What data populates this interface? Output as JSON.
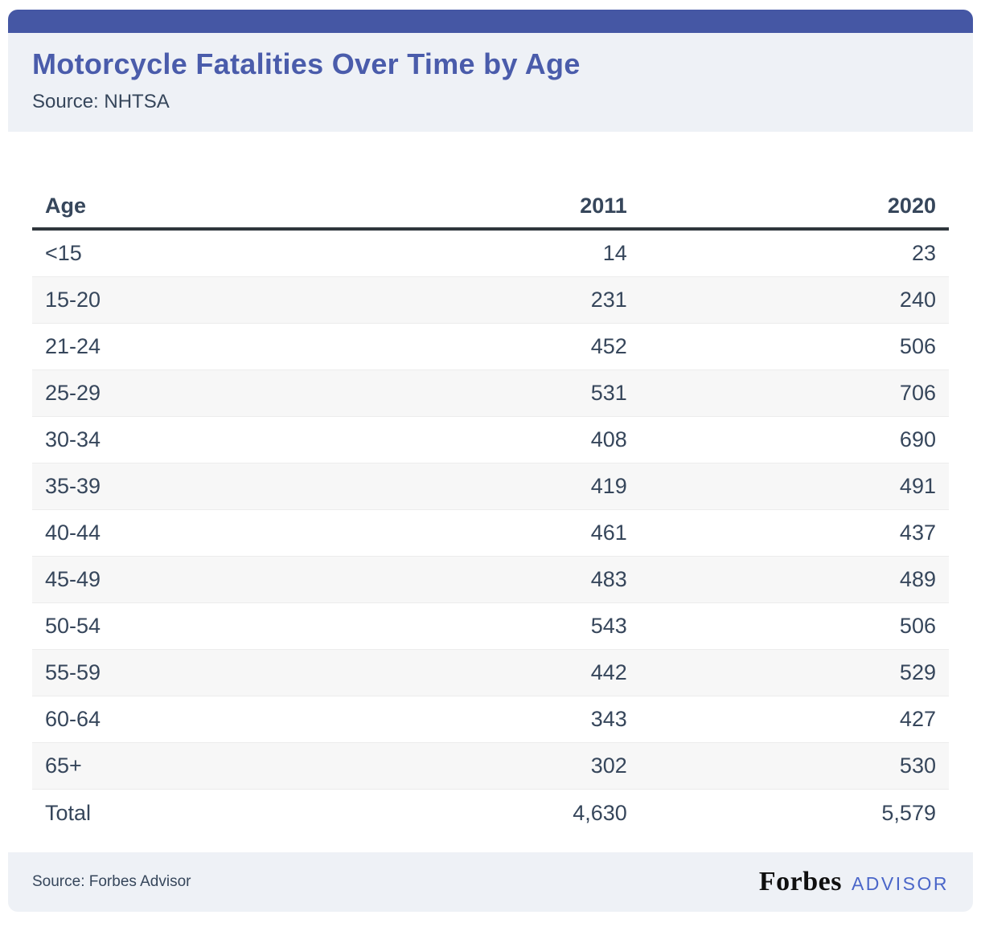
{
  "header": {
    "title": "Motorcycle Fatalities Over Time by Age",
    "source": "Source: NHTSA"
  },
  "table": {
    "columns": [
      "Age",
      "2011",
      "2020"
    ],
    "rows": [
      [
        "<15",
        "14",
        "23"
      ],
      [
        "15-20",
        "231",
        "240"
      ],
      [
        "21-24",
        "452",
        "506"
      ],
      [
        "25-29",
        "531",
        "706"
      ],
      [
        "30-34",
        "408",
        "690"
      ],
      [
        "35-39",
        "419",
        "491"
      ],
      [
        "40-44",
        "461",
        "437"
      ],
      [
        "45-49",
        "483",
        "489"
      ],
      [
        "50-54",
        "543",
        "506"
      ],
      [
        "55-59",
        "442",
        "529"
      ],
      [
        "60-64",
        "343",
        "427"
      ],
      [
        "65+",
        "302",
        "530"
      ],
      [
        "Total",
        "4,630",
        "5,579"
      ]
    ]
  },
  "footer": {
    "source": "Source: Forbes Advisor",
    "brand": "Forbes",
    "brand_suffix": "ADVISOR"
  },
  "colors": {
    "accent_bar": "#4557a4",
    "panel_background": "#eef1f6",
    "title_text": "#4a5cab",
    "body_text": "#36465b",
    "header_rule": "#2f363c",
    "row_stripe": "#f7f7f7",
    "row_border": "#ececec",
    "advisor_blue": "#4a66c9",
    "forbes_black": "#0f0f0f"
  },
  "chart_data": {
    "type": "table",
    "title": "Motorcycle Fatalities Over Time by Age",
    "source": "NHTSA",
    "categories": [
      "<15",
      "15-20",
      "21-24",
      "25-29",
      "30-34",
      "35-39",
      "40-44",
      "45-49",
      "50-54",
      "55-59",
      "60-64",
      "65+"
    ],
    "series": [
      {
        "name": "2011",
        "values": [
          14,
          231,
          452,
          531,
          408,
          419,
          461,
          483,
          543,
          442,
          343,
          302
        ],
        "displayed_total": 4630
      },
      {
        "name": "2020",
        "values": [
          23,
          240,
          506,
          706,
          690,
          491,
          437,
          489,
          506,
          529,
          427,
          530
        ],
        "displayed_total": 5579
      }
    ]
  }
}
